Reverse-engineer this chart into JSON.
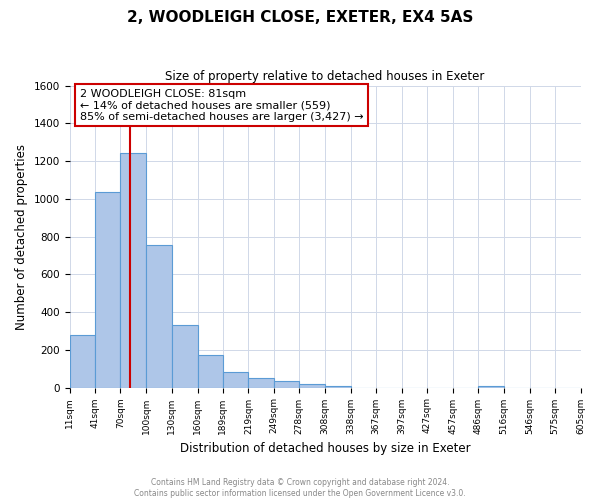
{
  "title": "2, WOODLEIGH CLOSE, EXETER, EX4 5AS",
  "subtitle": "Size of property relative to detached houses in Exeter",
  "xlabel": "Distribution of detached houses by size in Exeter",
  "ylabel": "Number of detached properties",
  "bar_edges": [
    11,
    41,
    70,
    100,
    130,
    160,
    189,
    219,
    249,
    278,
    308,
    338,
    367,
    397,
    427,
    457,
    486,
    516,
    546,
    575,
    605
  ],
  "bar_heights": [
    280,
    1035,
    1245,
    755,
    330,
    175,
    85,
    50,
    37,
    20,
    8,
    0,
    0,
    0,
    0,
    0,
    8,
    0,
    0,
    0
  ],
  "bar_color": "#aec6e8",
  "bar_edge_color": "#5b9bd5",
  "property_line_x": 81,
  "property_line_color": "#cc0000",
  "annotation_line1": "2 WOODLEIGH CLOSE: 81sqm",
  "annotation_line2": "← 14% of detached houses are smaller (559)",
  "annotation_line3": "85% of semi-detached houses are larger (3,427) →",
  "box_edge_color": "#cc0000",
  "ylim": [
    0,
    1600
  ],
  "yticks": [
    0,
    200,
    400,
    600,
    800,
    1000,
    1200,
    1400,
    1600
  ],
  "tick_labels": [
    "11sqm",
    "41sqm",
    "70sqm",
    "100sqm",
    "130sqm",
    "160sqm",
    "189sqm",
    "219sqm",
    "249sqm",
    "278sqm",
    "308sqm",
    "338sqm",
    "367sqm",
    "397sqm",
    "427sqm",
    "457sqm",
    "486sqm",
    "516sqm",
    "546sqm",
    "575sqm",
    "605sqm"
  ],
  "footer_line1": "Contains HM Land Registry data © Crown copyright and database right 2024.",
  "footer_line2": "Contains public sector information licensed under the Open Government Licence v3.0.",
  "background_color": "#ffffff",
  "grid_color": "#d0d8e8"
}
